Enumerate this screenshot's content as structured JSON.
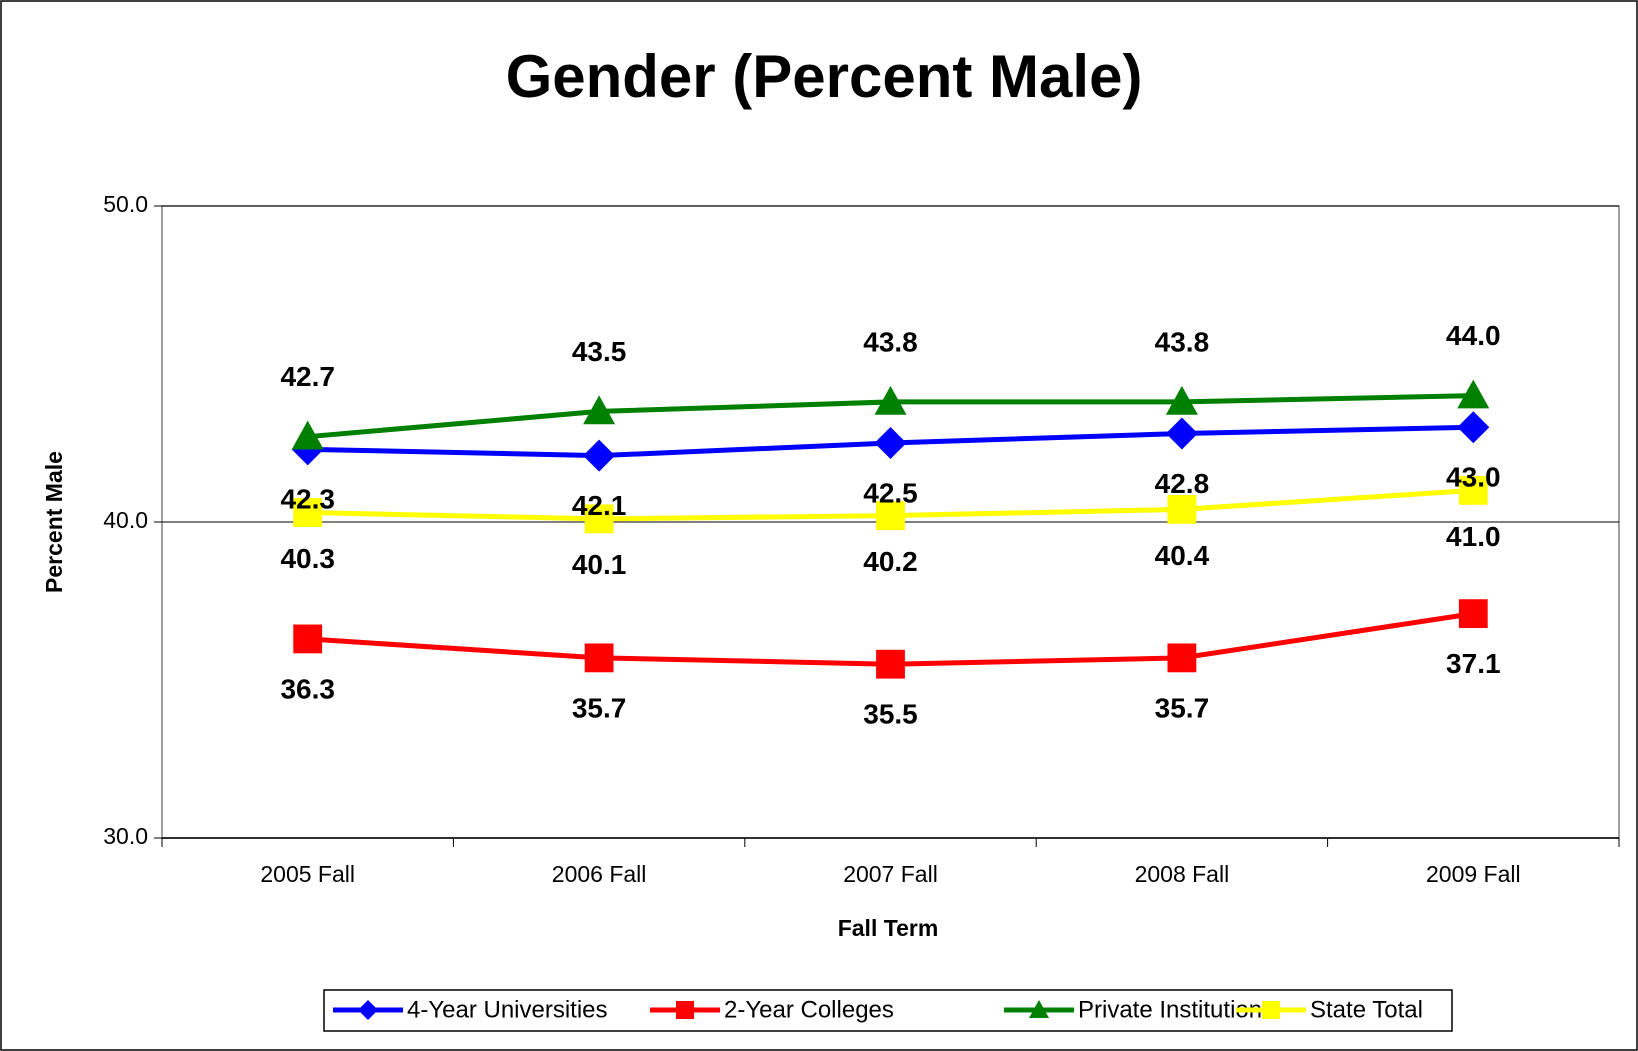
{
  "chart_data": {
    "type": "line",
    "title": "Gender (Percent Male)",
    "x_label": "Fall Term",
    "y_label": "Percent Male",
    "categories": [
      "2005 Fall",
      "2006 Fall",
      "2007 Fall",
      "2008 Fall",
      "2009 Fall"
    ],
    "series": [
      {
        "name": "4-Year Universities",
        "color": "#0000ff",
        "marker": "diamond",
        "values": [
          42.3,
          42.1,
          42.5,
          42.8,
          43.0
        ],
        "value_labels": [
          "42.3",
          "42.1",
          "42.5",
          "42.8",
          "43.0"
        ]
      },
      {
        "name": "2-Year Colleges",
        "color": "#ff0000",
        "marker": "square",
        "values": [
          36.3,
          35.7,
          35.5,
          35.7,
          37.1
        ],
        "value_labels": [
          "36.3",
          "35.7",
          "35.5",
          "35.7",
          "37.1"
        ]
      },
      {
        "name": "Private Institutions",
        "color": "#008000",
        "marker": "triangle",
        "values": [
          42.7,
          43.5,
          43.8,
          43.8,
          44.0
        ],
        "value_labels": [
          "42.7",
          "43.5",
          "43.8",
          "43.8",
          "44.0"
        ]
      },
      {
        "name": "State Total",
        "color": "#ffff00",
        "marker": "square",
        "values": [
          40.3,
          40.1,
          40.2,
          40.4,
          41.0
        ],
        "value_labels": [
          "40.3",
          "40.1",
          "40.2",
          "40.4",
          "41.0"
        ]
      }
    ],
    "ylim": [
      30,
      50
    ],
    "yticks": [
      {
        "value": 30,
        "label": "30.0"
      },
      {
        "value": 40,
        "label": "40.0"
      },
      {
        "value": 50,
        "label": "50.0"
      }
    ],
    "grid": true,
    "legend": "bottom"
  }
}
